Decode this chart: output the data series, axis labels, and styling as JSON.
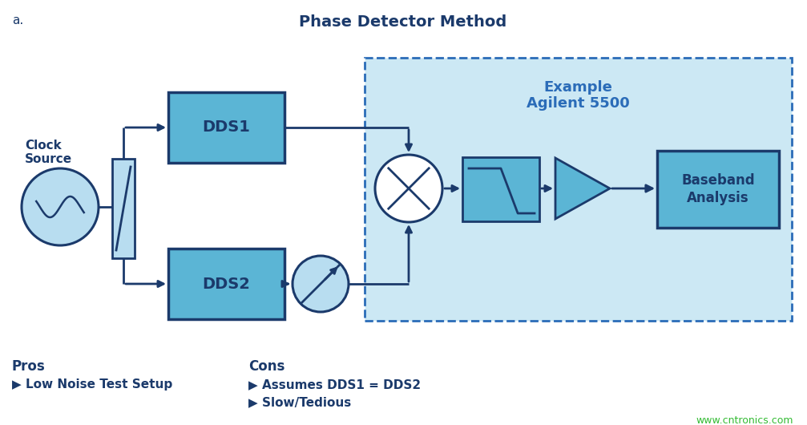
{
  "title": "Phase Detector Method",
  "label_a": "a.",
  "bg_color": "#ffffff",
  "dark_blue": "#1b3a6b",
  "mid_blue": "#2b6cb8",
  "light_blue_fill": "#b8ddf0",
  "box_fill": "#5bb5d5",
  "example_bg": "#cce8f4",
  "pros_title": "Pros",
  "pros_items": [
    "Low Noise Test Setup"
  ],
  "cons_title": "Cons",
  "cons_items": [
    "Assumes DDS1 = DDS2",
    "Slow/Tedious"
  ],
  "watermark": "www.cntronics.com",
  "watermark_color": "#33bb33",
  "cs_label": "Clock\nSource"
}
